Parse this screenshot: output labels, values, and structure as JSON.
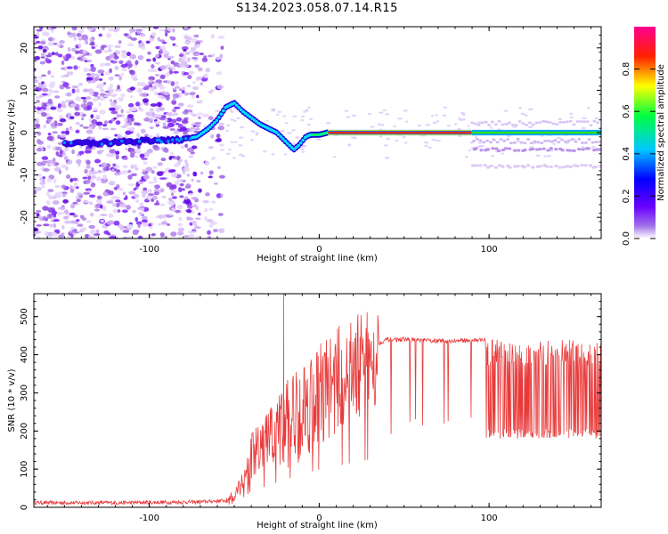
{
  "title": "S134.2023.058.07.14.R15",
  "chart_data": [
    {
      "type": "heatmap",
      "xlabel": "Height of straight line (km)",
      "ylabel": "Frequency (Hz)",
      "xlim": [
        -168,
        166
      ],
      "ylim": [
        -25,
        25
      ],
      "x_ticks": [
        "-100",
        "0",
        "100"
      ],
      "x_tick_values": [
        -100,
        0,
        100
      ],
      "y_ticks": [
        "-20",
        "-10",
        "0",
        "10",
        "20"
      ],
      "y_tick_values": [
        -20,
        -10,
        0,
        10,
        20
      ],
      "colorbar": {
        "label": "Normalized spectral amplitude",
        "ticks": [
          "0.0",
          "0.2",
          "0.4",
          "0.6",
          "0.8"
        ],
        "tick_values": [
          0,
          0.2,
          0.4,
          0.6,
          0.8
        ],
        "range": [
          0,
          1
        ],
        "colormap": "rainbow (purple-blue-cyan-green-yellow-red-magenta)"
      },
      "signal_trace": {
        "description": "dominant frequency track",
        "points": [
          [
            -150,
            -2.5
          ],
          [
            -135,
            -2.5
          ],
          [
            -125,
            -2.5
          ],
          [
            -115,
            -2
          ],
          [
            -100,
            -2
          ],
          [
            -90,
            -2
          ],
          [
            -80,
            -1.5
          ],
          [
            -72,
            -1
          ],
          [
            -65,
            1
          ],
          [
            -60,
            3
          ],
          [
            -55,
            6
          ],
          [
            -50,
            7
          ],
          [
            -45,
            5
          ],
          [
            -40,
            3.5
          ],
          [
            -35,
            2
          ],
          [
            -30,
            1
          ],
          [
            -25,
            0
          ],
          [
            -20,
            -2
          ],
          [
            -15,
            -4
          ],
          [
            -12,
            -3
          ],
          [
            -8,
            -1
          ],
          [
            -5,
            -0.5
          ],
          [
            0,
            -0.5
          ],
          [
            5,
            0
          ],
          [
            20,
            0
          ],
          [
            50,
            0
          ],
          [
            90,
            0
          ],
          [
            120,
            0
          ],
          [
            166,
            0
          ]
        ],
        "strong_segment_x": [
          5,
          90
        ],
        "secondary_tones_hz": [
          -4,
          -8
        ],
        "secondary_tones_x": [
          90,
          166
        ],
        "noise_region_x": [
          -168,
          -65
        ]
      }
    },
    {
      "type": "line",
      "xlabel": "Height of straight line (km)",
      "ylabel": "SNR (10 * v/v)",
      "xlim": [
        -168,
        166
      ],
      "ylim": [
        0,
        560
      ],
      "x_ticks": [
        "-100",
        "0",
        "100"
      ],
      "x_tick_values": [
        -100,
        0,
        100
      ],
      "y_ticks": [
        "0",
        "100",
        "200",
        "300",
        "400",
        "500"
      ],
      "y_tick_values": [
        0,
        100,
        200,
        300,
        400,
        500
      ],
      "color": "#e83a3a",
      "profile": [
        [
          -168,
          12
        ],
        [
          -120,
          12
        ],
        [
          -70,
          14
        ],
        [
          -55,
          18
        ],
        [
          -50,
          35
        ],
        [
          -45,
          80
        ],
        [
          -40,
          140
        ],
        [
          -30,
          190
        ],
        [
          -20,
          240
        ],
        [
          -10,
          290
        ],
        [
          0,
          330
        ],
        [
          10,
          360
        ],
        [
          20,
          390
        ],
        [
          30,
          420
        ],
        [
          40,
          440
        ],
        [
          50,
          440
        ],
        [
          60,
          438
        ],
        [
          70,
          436
        ],
        [
          80,
          436
        ],
        [
          90,
          438
        ],
        [
          98,
          440
        ],
        [
          100,
          300
        ],
        [
          120,
          300
        ],
        [
          140,
          300
        ],
        [
          166,
          300
        ]
      ],
      "spikes": [
        [
          -21,
          560
        ]
      ],
      "high_variance_x": [
        98,
        166
      ],
      "high_variance_band": [
        180,
        440
      ]
    }
  ]
}
